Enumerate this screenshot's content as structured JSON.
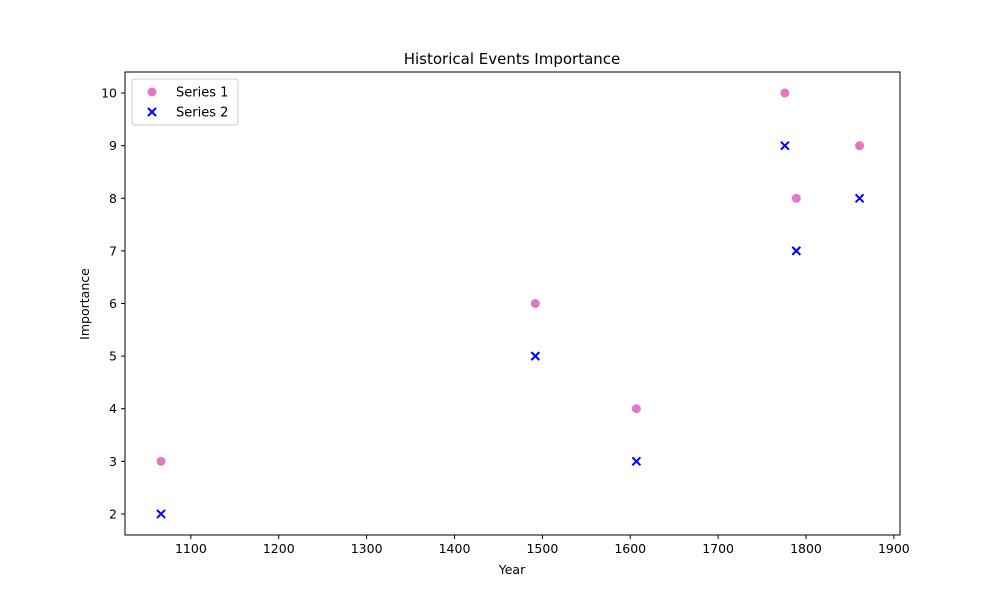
{
  "chart_data": {
    "type": "scatter",
    "title": "Historical Events Importance",
    "xlabel": "Year",
    "ylabel": "Importance",
    "xlim": [
      1025,
      1907
    ],
    "ylim": [
      1.6,
      10.4
    ],
    "xticks": [
      1100,
      1200,
      1300,
      1400,
      1500,
      1600,
      1700,
      1800,
      1900
    ],
    "yticks": [
      2,
      3,
      4,
      5,
      6,
      7,
      8,
      9,
      10
    ],
    "grid": false,
    "legend_position": "top-left",
    "series": [
      {
        "name": "Series 1",
        "marker": "circle",
        "color": "#e377c2",
        "points": [
          {
            "x": 1066,
            "y": 3
          },
          {
            "x": 1492,
            "y": 6
          },
          {
            "x": 1607,
            "y": 4
          },
          {
            "x": 1776,
            "y": 10
          },
          {
            "x": 1789,
            "y": 8
          },
          {
            "x": 1861,
            "y": 9
          }
        ]
      },
      {
        "name": "Series 2",
        "marker": "x",
        "color": "#0000ff",
        "points": [
          {
            "x": 1066,
            "y": 2
          },
          {
            "x": 1492,
            "y": 5
          },
          {
            "x": 1607,
            "y": 3
          },
          {
            "x": 1776,
            "y": 9
          },
          {
            "x": 1789,
            "y": 7
          },
          {
            "x": 1861,
            "y": 8
          }
        ]
      }
    ]
  }
}
